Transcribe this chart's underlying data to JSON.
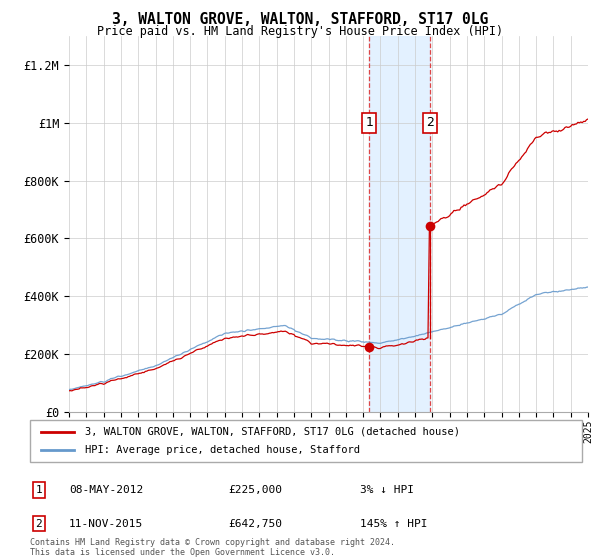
{
  "title": "3, WALTON GROVE, WALTON, STAFFORD, ST17 0LG",
  "subtitle": "Price paid vs. HM Land Registry's House Price Index (HPI)",
  "ylabel_ticks": [
    "£0",
    "£200K",
    "£400K",
    "£600K",
    "£800K",
    "£1M",
    "£1.2M"
  ],
  "ylim": [
    0,
    1300000
  ],
  "ytick_vals": [
    0,
    200000,
    400000,
    600000,
    800000,
    1000000,
    1200000
  ],
  "x_start_year": 1995,
  "x_end_year": 2025,
  "sale1_date": 2012.35,
  "sale1_price": 225000,
  "sale1_label": "1",
  "sale1_text": "08-MAY-2012",
  "sale1_price_str": "£225,000",
  "sale1_hpi_str": "3% ↓ HPI",
  "sale2_date": 2015.87,
  "sale2_price": 642750,
  "sale2_label": "2",
  "sale2_text": "11-NOV-2015",
  "sale2_price_str": "£642,750",
  "sale2_hpi_str": "145% ↑ HPI",
  "property_line_color": "#cc0000",
  "hpi_line_color": "#6699cc",
  "highlight_fill": "#ddeeff",
  "legend_property": "3, WALTON GROVE, WALTON, STAFFORD, ST17 0LG (detached house)",
  "legend_hpi": "HPI: Average price, detached house, Stafford",
  "footnote": "Contains HM Land Registry data © Crown copyright and database right 2024.\nThis data is licensed under the Open Government Licence v3.0."
}
